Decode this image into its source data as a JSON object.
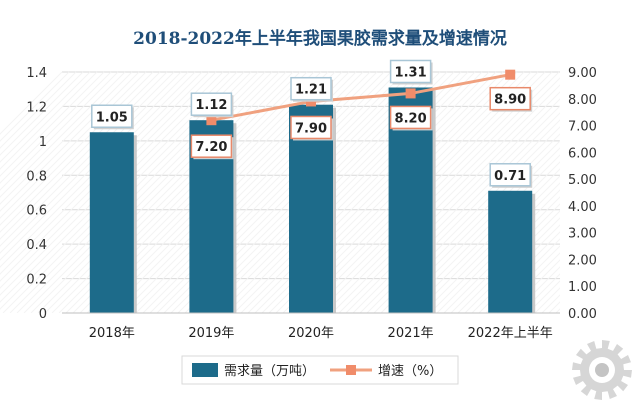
{
  "chart_data": {
    "type": "bar",
    "title": "2018-2022年上半年我国果胶需求量及增速情况",
    "categories": [
      "2018年",
      "2019年",
      "2020年",
      "2021年",
      "2022年上半年"
    ],
    "series": [
      {
        "name": "需求量（万吨）",
        "type": "bar",
        "axis": "left",
        "values": [
          1.05,
          1.12,
          1.21,
          1.31,
          0.71
        ],
        "labels": [
          "1.05",
          "1.12",
          "1.21",
          "1.31",
          "0.71"
        ]
      },
      {
        "name": "增速（%）",
        "type": "line",
        "axis": "right",
        "values": [
          null,
          7.2,
          7.9,
          8.2,
          8.9
        ],
        "labels": [
          "",
          "7.20",
          "7.90",
          "8.20",
          "8.90"
        ]
      }
    ],
    "y_left": {
      "range": [
        0,
        1.4
      ],
      "ticks": [
        "0",
        "0.2",
        "0.4",
        "0.6",
        "0.8",
        "1",
        "1.2",
        "1.4"
      ]
    },
    "y_right": {
      "range": [
        0,
        9
      ],
      "ticks": [
        "0.00",
        "1.00",
        "2.00",
        "3.00",
        "4.00",
        "5.00",
        "6.00",
        "7.00",
        "8.00",
        "9.00"
      ]
    },
    "grid": true,
    "legend_position": "bottom",
    "colors": {
      "bar": "#1d6b8a",
      "line": "#f0a17f",
      "marker": "#f08c6a",
      "label_border_bar": "#a9c6d6",
      "label_border_line": "#e8896a",
      "title": "#1f4e79",
      "grid": "#d9d9d9"
    }
  }
}
